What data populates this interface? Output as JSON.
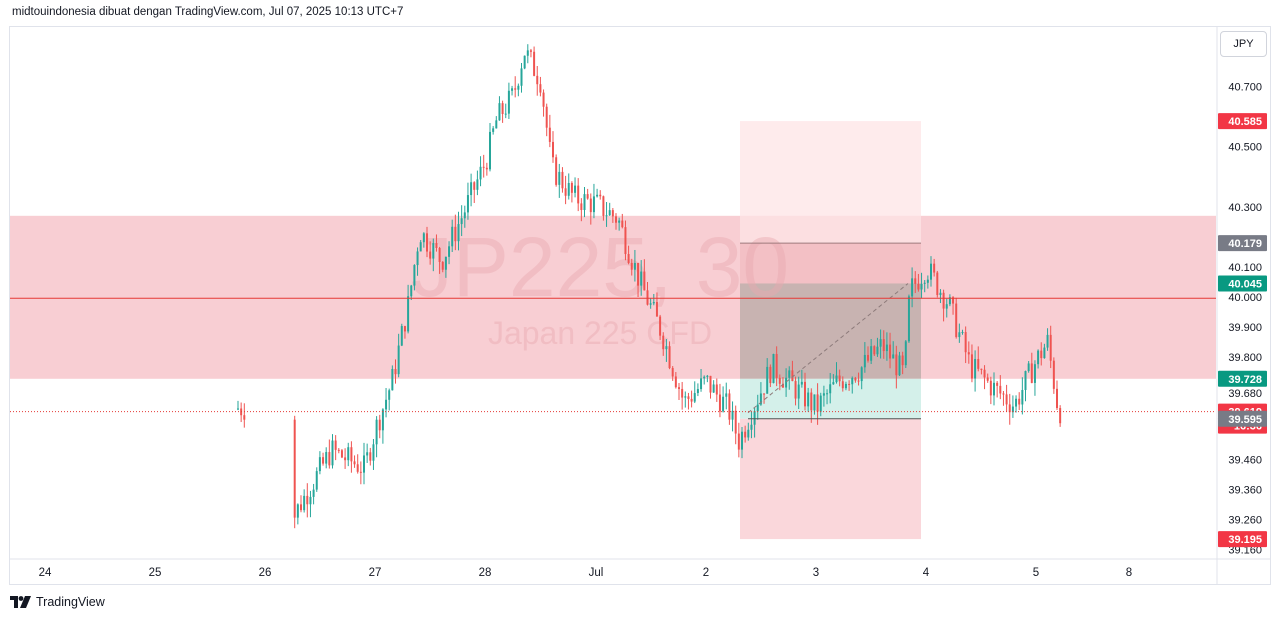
{
  "header": {
    "attribution": "midtouindonesia dibuat dengan TradingView.com, Jul 07, 2025 10:13 UTC+7"
  },
  "currency_button": "JPY",
  "footer": {
    "brand": "TradingView"
  },
  "watermark": {
    "symbol": "JP225, 30",
    "description": "Japan 225 CFD"
  },
  "colors": {
    "up": "#26a69a",
    "down": "#ef5350",
    "zone_fill": "#f7c5cb",
    "target_zone": "#fde4e5",
    "stop_zone": "#f9d3d7",
    "hold_zone": "#cfeee8",
    "hold_gray": "#b8aaa6",
    "line_red": "#e53935",
    "badge_red": "#f23645",
    "badge_green": "#089981",
    "badge_gray": "#787b86"
  },
  "chart_data": {
    "type": "candlestick",
    "title": "JP225, 30",
    "subtitle": "Japan 225 CFD",
    "y_axis": {
      "side": "right",
      "ticks": [
        40.7,
        40.5,
        40.3,
        40.1,
        40.0,
        39.9,
        39.8,
        39.68,
        39.46,
        39.36,
        39.26,
        39.16
      ],
      "tick_labels": [
        "40.700",
        "40.500",
        "40.300",
        "40.100",
        "40.000",
        "39.900",
        "39.800",
        "39.680",
        "39.460",
        "39.360",
        "39.260",
        "39.160"
      ],
      "range": [
        39.15,
        40.87
      ]
    },
    "x_axis": {
      "tick_labels": [
        "24",
        "25",
        "26",
        "27",
        "28",
        "Jul",
        "2",
        "3",
        "4",
        "5",
        "8"
      ]
    },
    "price_labels": [
      {
        "value": "40.585",
        "kind": "target"
      },
      {
        "value": "40.179",
        "kind": "level"
      },
      {
        "value": "40.045",
        "kind": "entry"
      },
      {
        "value": "39.728",
        "kind": "zone-bottom"
      },
      {
        "value": "39.619",
        "kind": "last-price"
      },
      {
        "value": "16:36",
        "kind": "countdown"
      },
      {
        "value": "39.595",
        "kind": "level"
      },
      {
        "value": "39.195",
        "kind": "stop"
      }
    ],
    "levels": {
      "zone_top": 40.27,
      "zone_bottom": 39.728,
      "horizontal_line": 39.996,
      "last_price": 39.619,
      "target": 40.585,
      "upper_level": 40.179,
      "entry": 40.045,
      "lower_level": 39.595,
      "stop": 39.195
    },
    "price_path": [
      [
        "26",
        39.07
      ],
      [
        "26.3",
        39.3
      ],
      [
        "26.6",
        39.49
      ],
      [
        "26.9",
        39.43
      ],
      [
        "27.0",
        39.56
      ],
      [
        "27.15",
        39.72
      ],
      [
        "27.3",
        39.98
      ],
      [
        "27.4",
        40.22
      ],
      [
        "27.6",
        40.12
      ],
      [
        "27.8",
        40.28
      ],
      [
        "28.0",
        40.45
      ],
      [
        "28.1",
        40.59
      ],
      [
        "28.25",
        40.67
      ],
      [
        "28.35",
        40.82
      ],
      [
        "28.5",
        40.72
      ],
      [
        "28.6",
        40.43
      ],
      [
        "28.8",
        40.33
      ],
      [
        "29.0",
        40.31
      ],
      [
        "29.2",
        40.26
      ],
      [
        "29.4",
        40.05
      ],
      [
        "29.6",
        39.88
      ],
      [
        "29.8",
        39.65
      ],
      [
        "30.0",
        39.72
      ],
      [
        "30.2",
        39.63
      ],
      [
        "30.3",
        39.52
      ],
      [
        "30.4",
        39.61
      ],
      [
        "30.6",
        39.77
      ],
      [
        "30.8",
        39.7
      ],
      [
        "31.0",
        39.63
      ],
      [
        "31.2",
        39.72
      ],
      [
        "31.4",
        39.76
      ],
      [
        "31.6",
        39.84
      ],
      [
        "31.8",
        39.74
      ],
      [
        "31.85",
        40.02
      ],
      [
        "32.0",
        40.1
      ],
      [
        "32.2",
        39.98
      ],
      [
        "32.4",
        39.77
      ],
      [
        "32.6",
        39.7
      ],
      [
        "32.8",
        39.64
      ],
      [
        "33.0",
        39.79
      ],
      [
        "33.1",
        39.85
      ],
      [
        "33.2",
        39.62
      ],
      [
        "33.25",
        39.63
      ]
    ]
  }
}
